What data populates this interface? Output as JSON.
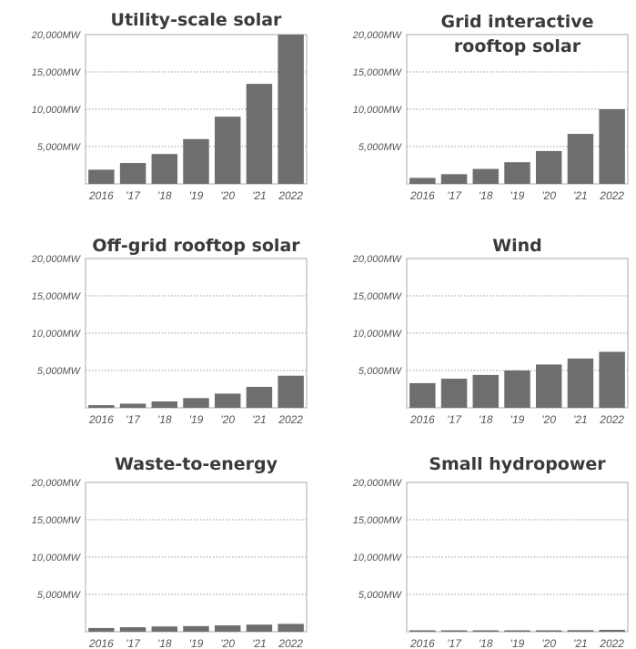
{
  "chart_data": [
    {
      "type": "bar",
      "title": [
        "Utility-scale solar"
      ],
      "categories": [
        "2016",
        "'17",
        "'18",
        "'19",
        "'20",
        "'21",
        "2022"
      ],
      "values": [
        1900,
        2800,
        4000,
        6000,
        9000,
        13400,
        20000
      ],
      "unit": "MW",
      "ylim": [
        0,
        20000
      ],
      "yticks": [
        "5,000MW",
        "10,000MW",
        "15,000MW",
        "20,000MW"
      ],
      "color": "#6e6e6e"
    },
    {
      "type": "bar",
      "title": [
        "Grid interactive",
        "rooftop solar"
      ],
      "categories": [
        "2016",
        "'17",
        "'18",
        "'19",
        "'20",
        "'21",
        "2022"
      ],
      "values": [
        800,
        1300,
        2000,
        2900,
        4400,
        6700,
        10000
      ],
      "unit": "MW",
      "ylim": [
        0,
        20000
      ],
      "yticks": [
        "5,000MW",
        "10,000MW",
        "15,000MW",
        "20,000MW"
      ],
      "color": "#6e6e6e"
    },
    {
      "type": "bar",
      "title": [
        "Off-grid rooftop solar"
      ],
      "categories": [
        "2016",
        "'17",
        "'18",
        "'19",
        "'20",
        "'21",
        "2022"
      ],
      "values": [
        350,
        550,
        850,
        1300,
        1900,
        2800,
        4300
      ],
      "unit": "MW",
      "ylim": [
        0,
        20000
      ],
      "yticks": [
        "5,000MW",
        "10,000MW",
        "15,000MW",
        "20,000MW"
      ],
      "color": "#6e6e6e"
    },
    {
      "type": "bar",
      "title": [
        "Wind"
      ],
      "categories": [
        "2016",
        "'17",
        "'18",
        "'19",
        "'20",
        "'21",
        "2022"
      ],
      "values": [
        3300,
        3900,
        4400,
        5000,
        5800,
        6600,
        7500
      ],
      "unit": "MW",
      "ylim": [
        0,
        20000
      ],
      "yticks": [
        "5,000MW",
        "10,000MW",
        "15,000MW",
        "20,000MW"
      ],
      "color": "#6e6e6e"
    },
    {
      "type": "bar",
      "title": [
        "Waste-to-energy"
      ],
      "categories": [
        "2016",
        "'17",
        "'18",
        "'19",
        "'20",
        "'21",
        "2022"
      ],
      "values": [
        500,
        600,
        700,
        750,
        850,
        950,
        1050
      ],
      "unit": "MW",
      "ylim": [
        0,
        20000
      ],
      "yticks": [
        "5,000MW",
        "10,000MW",
        "15,000MW",
        "20,000MW"
      ],
      "color": "#6e6e6e"
    },
    {
      "type": "bar",
      "title": [
        "Small hydropower"
      ],
      "categories": [
        "2016",
        "'17",
        "'18",
        "'19",
        "'20",
        "'21",
        "2022"
      ],
      "values": [
        80,
        100,
        120,
        150,
        180,
        210,
        250
      ],
      "unit": "MW",
      "ylim": [
        0,
        20000
      ],
      "yticks": [
        "5,000MW",
        "10,000MW",
        "15,000MW",
        "20,000MW"
      ],
      "color": "#6e6e6e"
    }
  ]
}
